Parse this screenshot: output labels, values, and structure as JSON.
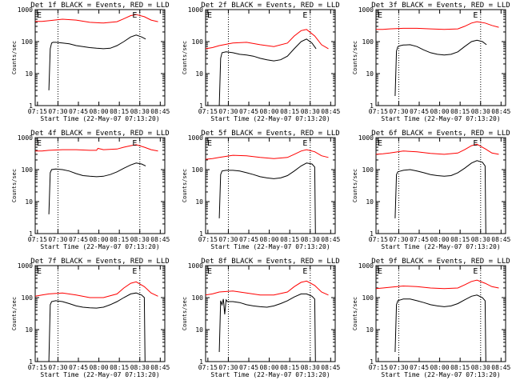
{
  "start_time_label": "Start Time (22-May-07 07:13:20)",
  "ylabel": "Counts/sec",
  "x_ticks": [
    "07:15",
    "07:30",
    "07:45",
    "08:00",
    "08:15",
    "08:30",
    "08:45"
  ],
  "y_ticks": [
    "1",
    "10",
    "100",
    "1000"
  ],
  "colors": {
    "events": "#000000",
    "lld": "#ff0000"
  },
  "chart_data": [
    {
      "type": "line",
      "detector": "1f",
      "title": "Det 1f BLACK = Events, RED = LLD",
      "xlabel": "Start Time (22-May-07 07:13:20)",
      "ylabel": "Counts/sec",
      "x_unit": "minutes after 07:13:20",
      "ylog": true,
      "ylim": [
        1,
        1000
      ],
      "vlines": [
        16.7,
        76.7
      ],
      "markers": [
        {
          "label": "E",
          "x": 0
        },
        {
          "label": "E",
          "x": 70
        }
      ],
      "series": [
        {
          "color": "#ff0000",
          "x": [
            0,
            5,
            10,
            20,
            30,
            40,
            50,
            60,
            65,
            70,
            74,
            80,
            85,
            90
          ],
          "y": [
            430,
            430,
            450,
            500,
            470,
            400,
            380,
            420,
            520,
            650,
            700,
            600,
            470,
            420
          ]
        },
        {
          "color": "#000000",
          "x": [
            10,
            11,
            12,
            13,
            15,
            20,
            25,
            30,
            35,
            40,
            45,
            50,
            55,
            60,
            65,
            70,
            74,
            78,
            81
          ],
          "y": [
            3,
            60,
            90,
            95,
            95,
            90,
            85,
            75,
            70,
            65,
            62,
            60,
            62,
            75,
            100,
            140,
            160,
            140,
            120
          ]
        }
      ]
    },
    {
      "type": "line",
      "detector": "2f",
      "title": "Det 2f BLACK = Events, RED = LLD",
      "xlabel": "Start Time (22-May-07 07:13:20)",
      "ylabel": "Counts/sec",
      "x_unit": "minutes after 07:13:20",
      "ylog": true,
      "ylim": [
        1,
        1000
      ],
      "vlines": [
        16.7,
        76.7
      ],
      "markers": [
        {
          "label": "E",
          "x": 0
        },
        {
          "label": "E",
          "x": 70
        }
      ],
      "series": [
        {
          "color": "#ff0000",
          "x": [
            0,
            5,
            10,
            20,
            30,
            40,
            50,
            60,
            65,
            70,
            74,
            80,
            85,
            90
          ],
          "y": [
            60,
            65,
            75,
            90,
            95,
            80,
            70,
            90,
            150,
            220,
            240,
            150,
            80,
            60
          ]
        },
        {
          "color": "#000000",
          "x": [
            10,
            11,
            12,
            15,
            20,
            25,
            30,
            35,
            40,
            45,
            50,
            55,
            60,
            65,
            70,
            74,
            78,
            81
          ],
          "y": [
            1,
            30,
            45,
            48,
            45,
            40,
            38,
            35,
            30,
            27,
            25,
            27,
            35,
            60,
            100,
            120,
            90,
            60
          ]
        }
      ]
    },
    {
      "type": "line",
      "detector": "3f",
      "title": "Det 3f BLACK = Events, RED = LLD",
      "xlabel": "Start Time (22-May-07 07:13:20)",
      "ylabel": "Counts/sec",
      "x_unit": "minutes after 07:13:20",
      "ylog": true,
      "ylim": [
        1,
        1000
      ],
      "vlines": [
        16.7,
        76.7
      ],
      "markers": [
        {
          "label": "E",
          "x": 0
        },
        {
          "label": "E",
          "x": 70
        }
      ],
      "series": [
        {
          "color": "#ff0000",
          "x": [
            0,
            5,
            10,
            20,
            30,
            40,
            50,
            60,
            65,
            70,
            74,
            80,
            85,
            90
          ],
          "y": [
            240,
            240,
            250,
            260,
            260,
            250,
            240,
            250,
            300,
            380,
            420,
            380,
            320,
            280
          ]
        },
        {
          "color": "#000000",
          "x": [
            14,
            15,
            16,
            18,
            20,
            25,
            30,
            35,
            40,
            45,
            50,
            55,
            60,
            65,
            70,
            74,
            78,
            81
          ],
          "y": [
            2,
            50,
            70,
            75,
            78,
            80,
            70,
            55,
            45,
            40,
            38,
            40,
            48,
            70,
            100,
            110,
            100,
            80
          ]
        }
      ]
    },
    {
      "type": "line",
      "detector": "4f",
      "title": "Det 4f BLACK = Events, RED = LLD",
      "xlabel": "Start Time (22-May-07 07:13:20)",
      "ylabel": "Counts/sec",
      "x_unit": "minutes after 07:13:20",
      "ylog": true,
      "ylim": [
        1,
        1000
      ],
      "vlines": [
        16.7,
        76.7
      ],
      "markers": [
        {
          "label": "E",
          "x": 0
        },
        {
          "label": "E",
          "x": 70
        }
      ],
      "series": [
        {
          "color": "#ff0000",
          "x": [
            0,
            5,
            10,
            20,
            30,
            40,
            45,
            46,
            50,
            60,
            65,
            70,
            74,
            80,
            85,
            90
          ],
          "y": [
            380,
            380,
            400,
            420,
            420,
            400,
            400,
            460,
            420,
            440,
            500,
            560,
            600,
            500,
            420,
            380
          ]
        },
        {
          "color": "#000000",
          "x": [
            10,
            11,
            12,
            15,
            20,
            25,
            30,
            35,
            40,
            45,
            50,
            55,
            60,
            65,
            70,
            74,
            78,
            81
          ],
          "y": [
            4,
            80,
            100,
            105,
            100,
            90,
            75,
            65,
            62,
            60,
            62,
            70,
            85,
            110,
            140,
            160,
            150,
            130
          ]
        }
      ]
    },
    {
      "type": "line",
      "detector": "5f",
      "title": "Det 5f BLACK = Events, RED = LLD",
      "xlabel": "Start Time (22-May-07 07:13:20)",
      "ylabel": "Counts/sec",
      "x_unit": "minutes after 07:13:20",
      "ylog": true,
      "ylim": [
        1,
        1000
      ],
      "vlines": [
        16.7,
        76.7
      ],
      "markers": [
        {
          "label": "E",
          "x": 0
        },
        {
          "label": "E",
          "x": 70
        }
      ],
      "series": [
        {
          "color": "#ff0000",
          "x": [
            0,
            5,
            10,
            20,
            30,
            40,
            50,
            60,
            65,
            70,
            74,
            80,
            85,
            90
          ],
          "y": [
            210,
            220,
            240,
            280,
            270,
            240,
            220,
            240,
            300,
            380,
            420,
            360,
            270,
            240
          ]
        },
        {
          "color": "#000000",
          "x": [
            10,
            11,
            12,
            15,
            20,
            25,
            30,
            35,
            40,
            45,
            50,
            55,
            60,
            65,
            70,
            74,
            78,
            80,
            80.5
          ],
          "y": [
            3,
            70,
            90,
            95,
            95,
            90,
            80,
            70,
            60,
            55,
            52,
            55,
            65,
            90,
            130,
            160,
            150,
            120,
            1
          ]
        }
      ]
    },
    {
      "type": "line",
      "detector": "6f",
      "title": "Det 6f BLACK = Events, RED = LLD",
      "xlabel": "Start Time (22-May-07 07:13:20)",
      "ylabel": "Counts/sec",
      "x_unit": "minutes after 07:13:20",
      "ylog": true,
      "ylim": [
        1,
        1000
      ],
      "vlines": [
        16.7,
        76.7
      ],
      "markers": [
        {
          "label": "E",
          "x": 0
        },
        {
          "label": "E",
          "x": 70
        }
      ],
      "series": [
        {
          "color": "#ff0000",
          "x": [
            0,
            5,
            10,
            20,
            30,
            40,
            50,
            60,
            65,
            70,
            74,
            80,
            85,
            90
          ],
          "y": [
            300,
            310,
            330,
            380,
            360,
            320,
            300,
            330,
            420,
            560,
            620,
            450,
            330,
            300
          ]
        },
        {
          "color": "#000000",
          "x": [
            14,
            15,
            16,
            18,
            20,
            25,
            30,
            35,
            40,
            45,
            50,
            55,
            60,
            65,
            70,
            74,
            78,
            80,
            80.5
          ],
          "y": [
            3,
            70,
            85,
            90,
            95,
            100,
            90,
            80,
            70,
            65,
            62,
            65,
            80,
            110,
            160,
            190,
            170,
            130,
            1
          ]
        }
      ]
    },
    {
      "type": "line",
      "detector": "7f",
      "title": "Det 7f BLACK = Events, RED = LLD",
      "xlabel": "Start Time (22-May-07 07:13:20)",
      "ylabel": "Counts/sec",
      "x_unit": "minutes after 07:13:20",
      "ylog": true,
      "ylim": [
        1,
        1000
      ],
      "vlines": [
        16.7,
        76.7
      ],
      "markers": [
        {
          "label": "E",
          "x": 0
        },
        {
          "label": "E",
          "x": 70
        }
      ],
      "series": [
        {
          "color": "#ff0000",
          "x": [
            0,
            5,
            10,
            20,
            30,
            40,
            50,
            60,
            65,
            70,
            74,
            80,
            85,
            90
          ],
          "y": [
            110,
            120,
            130,
            140,
            120,
            100,
            100,
            130,
            200,
            280,
            310,
            220,
            140,
            110
          ]
        },
        {
          "color": "#000000",
          "x": [
            10,
            11,
            12,
            15,
            20,
            25,
            30,
            35,
            40,
            45,
            50,
            55,
            60,
            65,
            70,
            74,
            78,
            80,
            80.5
          ],
          "y": [
            1,
            60,
            75,
            80,
            75,
            65,
            55,
            50,
            48,
            47,
            50,
            60,
            75,
            100,
            130,
            140,
            120,
            100,
            1
          ]
        }
      ]
    },
    {
      "type": "line",
      "detector": "8f",
      "title": "Det 8f BLACK = Events, RED = LLD",
      "xlabel": "Start Time (22-May-07 07:13:20)",
      "ylabel": "Counts/sec",
      "x_unit": "minutes after 07:13:20",
      "ylog": true,
      "ylim": [
        1,
        1000
      ],
      "vlines": [
        16.7,
        76.7
      ],
      "markers": [
        {
          "label": "E",
          "x": 0
        },
        {
          "label": "E",
          "x": 70
        }
      ],
      "series": [
        {
          "color": "#ff0000",
          "x": [
            0,
            5,
            10,
            20,
            30,
            40,
            50,
            60,
            65,
            70,
            74,
            80,
            85,
            90
          ],
          "y": [
            120,
            130,
            150,
            160,
            140,
            120,
            120,
            150,
            220,
            300,
            330,
            240,
            150,
            120
          ]
        },
        {
          "color": "#000000",
          "x": [
            10,
            11,
            12,
            13,
            14,
            15,
            16,
            20,
            25,
            30,
            35,
            40,
            45,
            50,
            55,
            60,
            65,
            70,
            74,
            78,
            80,
            80.5
          ],
          "y": [
            2,
            80,
            60,
            90,
            30,
            85,
            75,
            75,
            70,
            60,
            55,
            52,
            50,
            55,
            65,
            80,
            105,
            130,
            130,
            110,
            90,
            1
          ]
        }
      ]
    },
    {
      "type": "line",
      "detector": "9f",
      "title": "Det 9f BLACK = Events, RED = LLD",
      "xlabel": "Start Time (22-May-07 07:13:20)",
      "ylabel": "Counts/sec",
      "x_unit": "minutes after 07:13:20",
      "ylog": true,
      "ylim": [
        1,
        1000
      ],
      "vlines": [
        16.7,
        76.7
      ],
      "markers": [
        {
          "label": "E",
          "x": 0
        },
        {
          "label": "E",
          "x": 70
        }
      ],
      "series": [
        {
          "color": "#ff0000",
          "x": [
            0,
            5,
            10,
            20,
            30,
            40,
            50,
            60,
            65,
            70,
            74,
            80,
            85,
            90
          ],
          "y": [
            190,
            200,
            210,
            230,
            220,
            200,
            190,
            200,
            250,
            320,
            350,
            280,
            220,
            200
          ]
        },
        {
          "color": "#000000",
          "x": [
            14,
            15,
            16,
            18,
            20,
            25,
            30,
            35,
            40,
            45,
            50,
            55,
            60,
            65,
            70,
            74,
            78,
            80,
            80.5
          ],
          "y": [
            2,
            60,
            80,
            85,
            90,
            90,
            80,
            70,
            60,
            55,
            52,
            55,
            65,
            85,
            110,
            120,
            100,
            80,
            1
          ]
        }
      ]
    }
  ]
}
